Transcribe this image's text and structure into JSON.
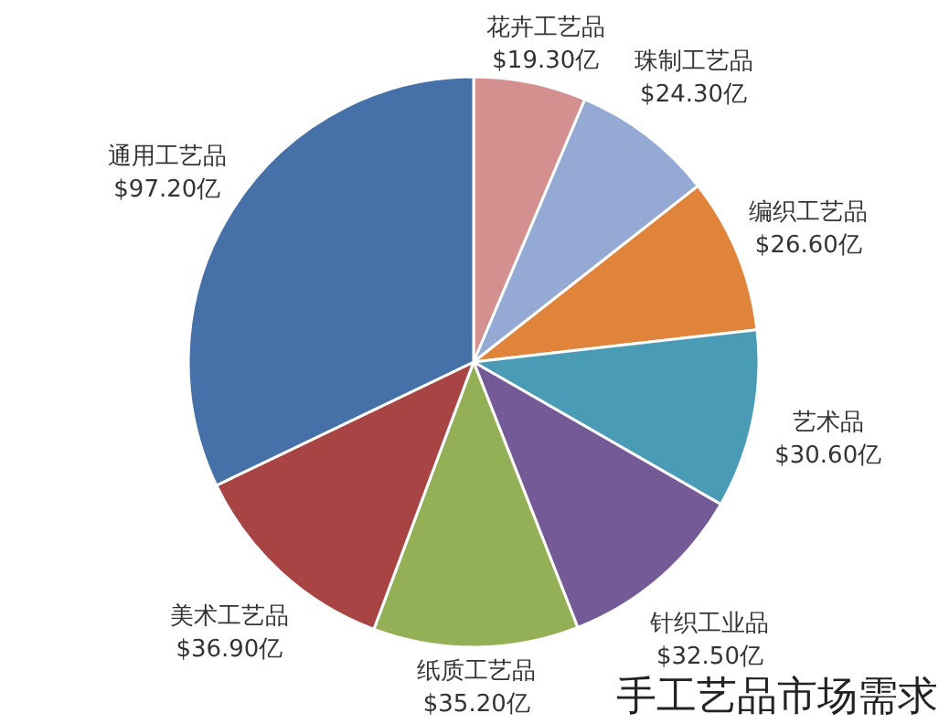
{
  "chart_data": {
    "type": "pie",
    "title": "手工艺品市场需求",
    "categories": [
      "花卉工艺品",
      "珠制工艺品",
      "编织工艺品",
      "艺术品",
      "针织工业品",
      "纸质工艺品",
      "美术工艺品",
      "通用工艺品"
    ],
    "values": [
      19.3,
      24.3,
      26.6,
      30.6,
      32.5,
      35.2,
      36.9,
      97.2
    ],
    "value_labels": [
      "$19.30亿",
      "$24.30亿",
      "$26.60亿",
      "$30.60亿",
      "$32.50亿",
      "$35.20亿",
      "$36.90亿",
      "$97.20亿"
    ],
    "colors": [
      "#d4908e",
      "#94a9d4",
      "#e0843c",
      "#4a9bb5",
      "#745a97",
      "#94b056",
      "#a84443",
      "#4570a8"
    ]
  }
}
